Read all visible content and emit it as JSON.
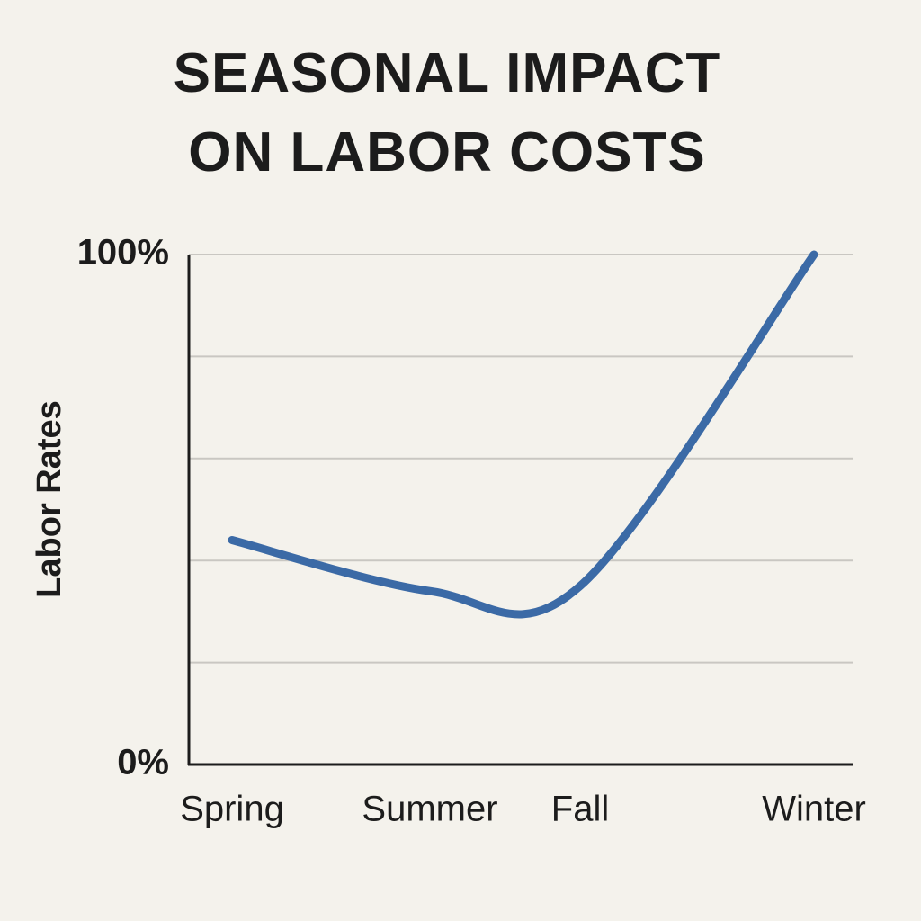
{
  "chart_data": {
    "type": "line",
    "title": "SEASONAL IMPACT ON LABOR COSTS",
    "y_label": "Labor Rates",
    "categories": [
      "Spring",
      "Summer",
      "Fall",
      "Winter"
    ],
    "values": [
      44,
      34,
      35,
      100
    ],
    "color": "#3b6aa6",
    "ylim": [
      0,
      100
    ],
    "yticks": [
      {
        "value": 0,
        "label": "0%"
      },
      {
        "value": 100,
        "label": "100%"
      }
    ],
    "grid": true,
    "ygrid": [
      20,
      40,
      60,
      80,
      100
    ]
  }
}
